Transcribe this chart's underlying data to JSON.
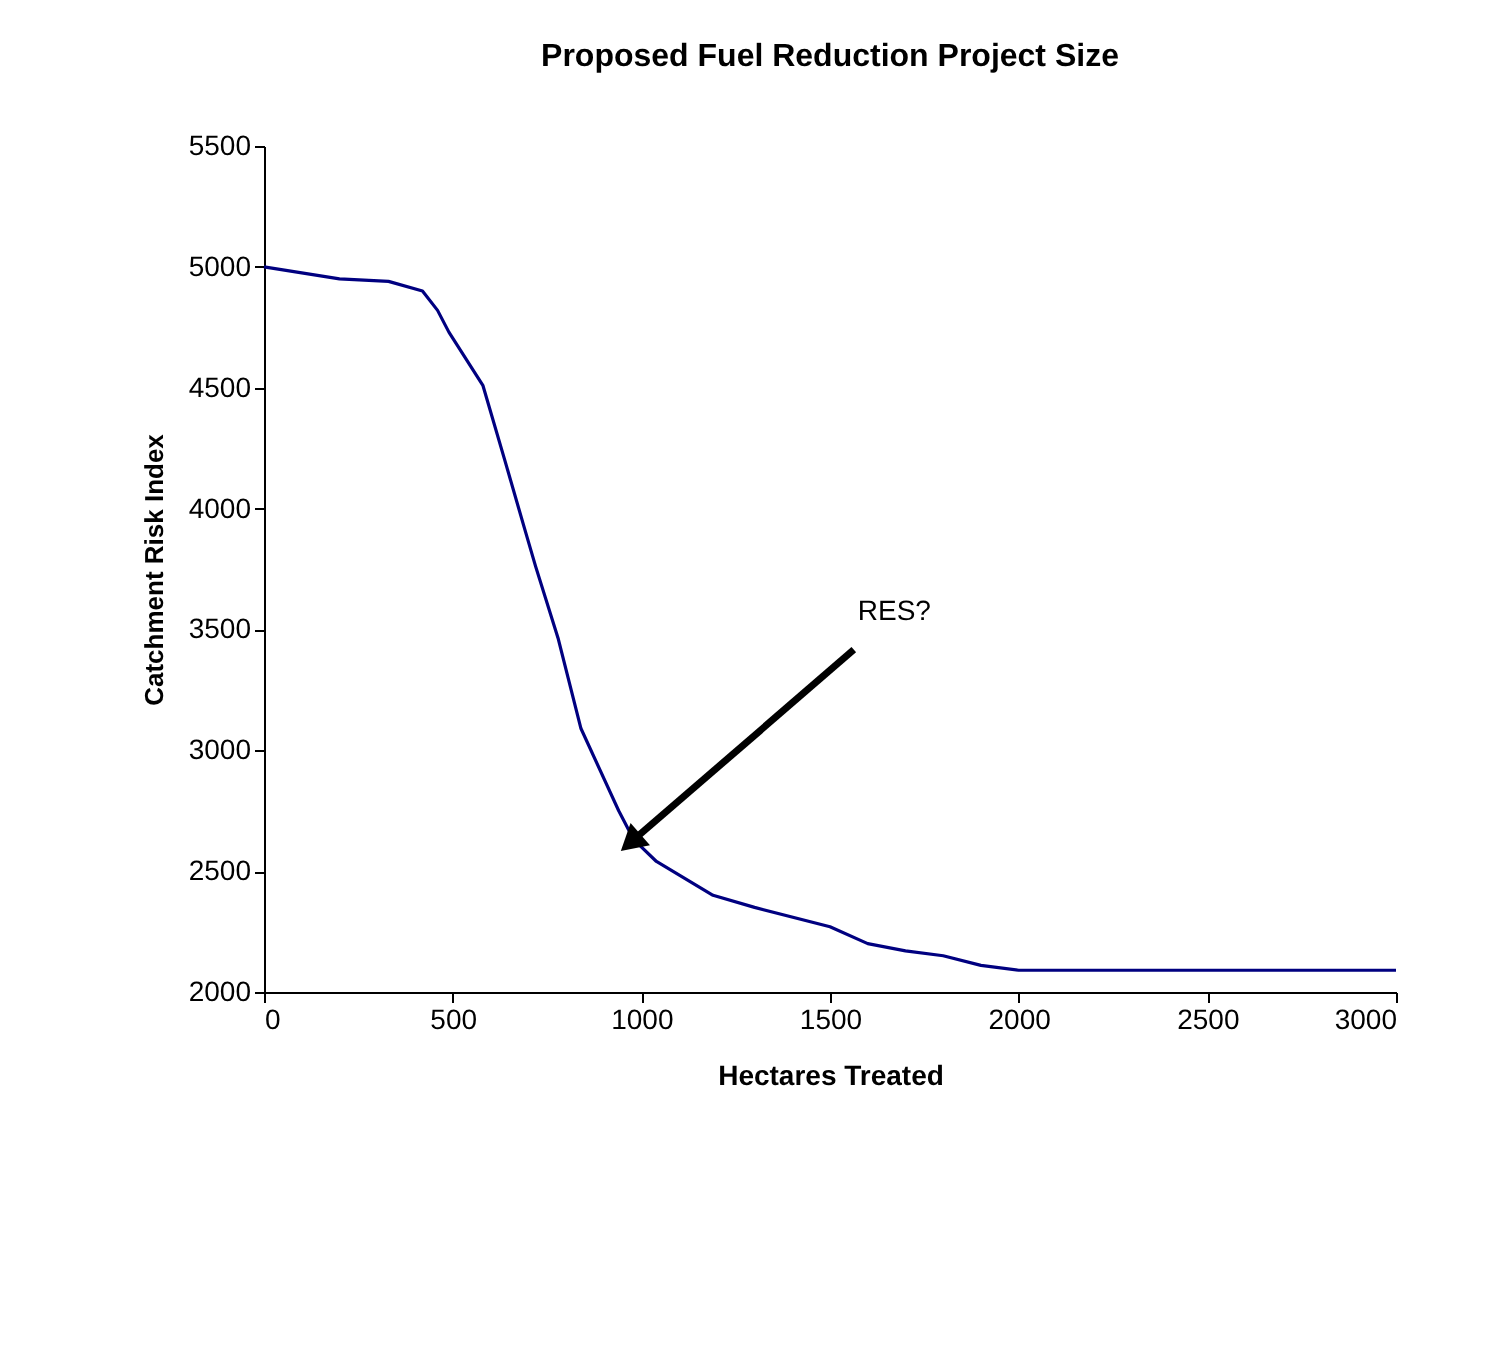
{
  "chart_data": {
    "type": "line",
    "title": "Proposed Fuel Reduction Project Size",
    "xlabel": "Hectares Treated",
    "ylabel": "Catchment Risk Index",
    "x": [
      0,
      200,
      330,
      420,
      460,
      490,
      580,
      640,
      690,
      720,
      780,
      840,
      940,
      980,
      1040,
      1190,
      1300,
      1500,
      1600,
      1700,
      1800,
      1900,
      2000,
      2500,
      3000
    ],
    "series": [
      {
        "color": "#000080",
        "values": [
          5000,
          4950,
          4940,
          4900,
          4820,
          4730,
          4510,
          4190,
          3920,
          3760,
          3460,
          3090,
          2750,
          2630,
          2540,
          2400,
          2350,
          2270,
          2200,
          2170,
          2150,
          2110,
          2090,
          2090,
          2090
        ]
      }
    ],
    "xlim": [
      0,
      3000
    ],
    "xticks": [
      0,
      500,
      1000,
      1500,
      2000,
      2500,
      3000
    ],
    "ylim": [
      2000,
      5500
    ],
    "yticks": [
      2000,
      2500,
      3000,
      3500,
      4000,
      4500,
      5000,
      5500
    ],
    "grid": false,
    "marker": "none",
    "line_style": "solid",
    "annotations": [
      {
        "text": "RES?",
        "x": 980,
        "y": 2630
      }
    ]
  }
}
